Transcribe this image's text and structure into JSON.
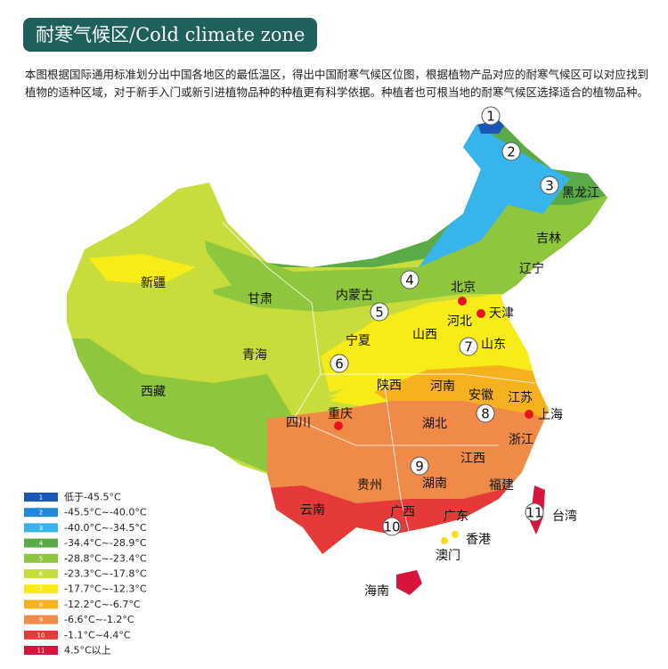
{
  "header": {
    "title": "耐寒气候区/Cold climate zone"
  },
  "description": "本图根据国际通用标准划分出中国各地区的最低温区，得出中国耐寒气候区位图，根据植物产品对应的耐寒气候区可以对应找到植物的适种区域，对于新手入门或新引进植物品种的种植更有科学依据。种植者也可根当地的耐寒气候区选择适合的植物品种。",
  "map": {
    "provinces": [
      "新疆",
      "甘肃",
      "内蒙古",
      "北京",
      "天津",
      "河北",
      "辽宁",
      "吉林",
      "黑龙江",
      "宁夏",
      "山西",
      "山东",
      "青海",
      "西藏",
      "陕西",
      "河南",
      "安徽",
      "江苏",
      "上海",
      "四川",
      "重庆",
      "湖北",
      "浙江",
      "江西",
      "贵州",
      "湖南",
      "福建",
      "云南",
      "广西",
      "广东",
      "香港",
      "澳门",
      "台湾",
      "海南"
    ],
    "zone_markers": [
      "1",
      "2",
      "3",
      "4",
      "5",
      "6",
      "7",
      "8",
      "9",
      "10",
      "11"
    ]
  },
  "legend": {
    "items": [
      {
        "number": "1",
        "label": "低于-45.5°C",
        "color": "#1a55b8"
      },
      {
        "number": "2",
        "label": "-45.5°C~-40.0°C",
        "color": "#1e88dc"
      },
      {
        "number": "3",
        "label": "-40.0°C~-34.5°C",
        "color": "#38b4ec"
      },
      {
        "number": "4",
        "label": "-34.4°C~-28.9°C",
        "color": "#5aaa48"
      },
      {
        "number": "5",
        "label": "-28.8°C~-23.4°C",
        "color": "#8ec63e"
      },
      {
        "number": "6",
        "label": "-23.3°C~-17.8°C",
        "color": "#c8dc3c"
      },
      {
        "number": "7",
        "label": "-17.7°C~-12.3°C",
        "color": "#f8ec18"
      },
      {
        "number": "8",
        "label": "-12.2°C~-6.7°C",
        "color": "#f5b21e"
      },
      {
        "number": "9",
        "label": "-6.6°C~-1.2°C",
        "color": "#ef8a48"
      },
      {
        "number": "10",
        "label": "-1.1°C~4.4°C",
        "color": "#e63a3a"
      },
      {
        "number": "11",
        "label": "4.5°C以上",
        "color": "#d8143c"
      }
    ]
  }
}
